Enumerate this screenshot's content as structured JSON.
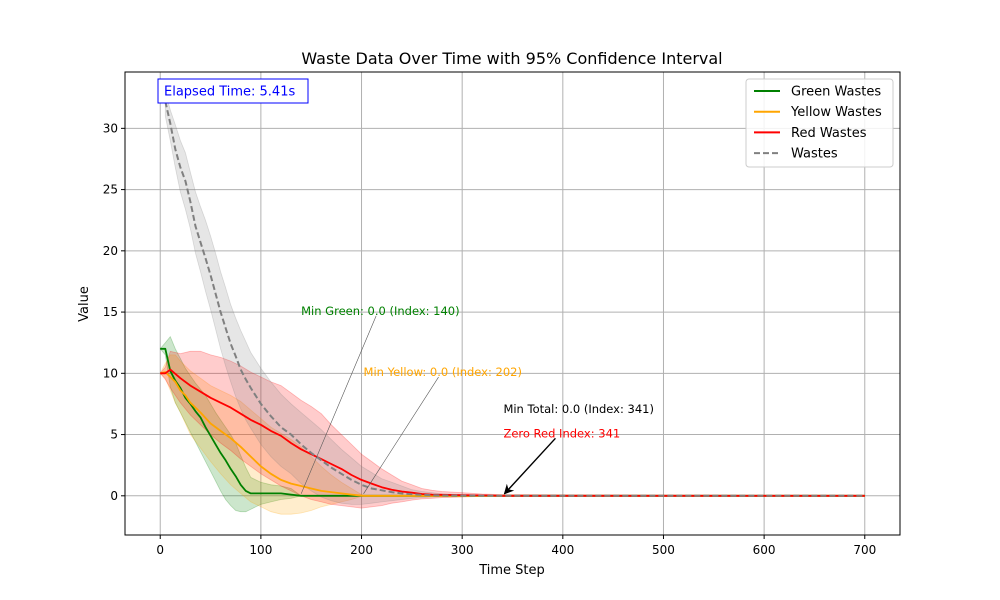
{
  "chart_data": {
    "type": "line",
    "title": "Waste Data Over Time with 95% Confidence Interval",
    "xlabel": "Time Step",
    "ylabel": "Value",
    "xlim": [
      -35,
      735
    ],
    "ylim": [
      -3.2,
      34.6
    ],
    "x_ticks": [
      0,
      100,
      200,
      300,
      400,
      500,
      600,
      700
    ],
    "y_ticks": [
      0,
      5,
      10,
      15,
      20,
      25,
      30
    ],
    "grid": true,
    "legend_position": "top-right",
    "series": [
      {
        "name": "Green Wastes",
        "color": "#008000",
        "dash": false,
        "x": [
          0,
          5,
          10,
          15,
          20,
          25,
          30,
          35,
          40,
          45,
          50,
          55,
          60,
          65,
          70,
          75,
          80,
          85,
          90,
          95,
          100,
          110,
          120,
          130,
          140,
          700
        ],
        "y": [
          12,
          12,
          10.2,
          9.4,
          8.8,
          8.0,
          7.5,
          6.9,
          6.4,
          5.6,
          4.9,
          4.2,
          3.5,
          2.9,
          2.2,
          1.6,
          0.9,
          0.4,
          0.2,
          0.2,
          0.2,
          0.2,
          0.2,
          0.1,
          0.0,
          0.0
        ],
        "lo": [
          12,
          11.5,
          8.9,
          7.6,
          6.8,
          6.0,
          5.2,
          4.4,
          3.6,
          2.8,
          2.0,
          1.2,
          0.4,
          -0.3,
          -0.8,
          -1.2,
          -1.3,
          -1.3,
          -1.1,
          -0.9,
          -0.7,
          -0.5,
          -0.3,
          -0.2,
          0.0,
          0.0
        ],
        "hi": [
          12,
          12.5,
          13.0,
          12.0,
          11.2,
          10.4,
          9.8,
          9.2,
          8.7,
          8.2,
          7.5,
          6.8,
          6.2,
          5.6,
          5.0,
          4.3,
          3.3,
          2.3,
          1.5,
          1.3,
          1.1,
          0.9,
          0.8,
          0.6,
          0.0,
          0.0
        ]
      },
      {
        "name": "Yellow Wastes",
        "color": "#FFA500",
        "dash": false,
        "x": [
          0,
          5,
          10,
          15,
          20,
          25,
          30,
          40,
          50,
          60,
          70,
          80,
          90,
          100,
          110,
          120,
          130,
          140,
          150,
          160,
          170,
          180,
          190,
          202,
          700
        ],
        "y": [
          10,
          10.1,
          9.7,
          9.3,
          8.6,
          8.2,
          7.6,
          6.8,
          5.9,
          5.3,
          4.7,
          4.0,
          3.2,
          2.4,
          1.8,
          1.3,
          1.0,
          0.8,
          0.6,
          0.4,
          0.3,
          0.2,
          0.1,
          0.0,
          0.0
        ],
        "lo": [
          10,
          9.6,
          8.6,
          7.6,
          6.8,
          5.9,
          5.0,
          3.9,
          2.8,
          1.8,
          0.9,
          0.2,
          -0.5,
          -0.9,
          -1.3,
          -1.5,
          -1.5,
          -1.4,
          -1.2,
          -0.9,
          -0.7,
          -0.5,
          -0.3,
          0.0,
          0.0
        ],
        "hi": [
          10,
          10.8,
          11.5,
          11.5,
          11.0,
          10.6,
          10.2,
          9.6,
          9.0,
          8.6,
          8.2,
          7.7,
          7.0,
          6.3,
          5.6,
          5.1,
          4.6,
          4.0,
          3.2,
          2.4,
          1.7,
          1.1,
          0.6,
          0.0,
          0.0
        ]
      },
      {
        "name": "Red Wastes",
        "color": "#FF0000",
        "dash": false,
        "x": [
          0,
          5,
          10,
          20,
          30,
          40,
          50,
          60,
          70,
          80,
          90,
          100,
          110,
          120,
          130,
          140,
          150,
          160,
          170,
          180,
          190,
          200,
          210,
          220,
          230,
          240,
          250,
          260,
          270,
          280,
          300,
          320,
          341,
          700
        ],
        "y": [
          10,
          10.0,
          10.3,
          9.6,
          9.0,
          8.5,
          8.0,
          7.6,
          7.2,
          6.7,
          6.2,
          5.8,
          5.3,
          4.9,
          4.3,
          3.8,
          3.4,
          3.0,
          2.6,
          2.2,
          1.7,
          1.3,
          1.0,
          0.7,
          0.5,
          0.35,
          0.25,
          0.15,
          0.1,
          0.08,
          0.05,
          0.03,
          0.0,
          0.0
        ],
        "lo": [
          10,
          9.5,
          8.8,
          7.6,
          6.6,
          5.8,
          5.0,
          4.3,
          3.7,
          3.0,
          2.4,
          1.8,
          1.3,
          0.8,
          0.4,
          0.0,
          -0.3,
          -0.5,
          -0.7,
          -0.8,
          -0.9,
          -1.0,
          -0.9,
          -0.8,
          -0.6,
          -0.5,
          -0.35,
          -0.25,
          -0.2,
          -0.15,
          -0.1,
          -0.05,
          -0.02,
          0.0
        ],
        "hi": [
          10,
          10.5,
          11.8,
          11.6,
          11.8,
          11.8,
          11.5,
          11.3,
          11.0,
          10.6,
          10.1,
          9.7,
          9.3,
          9.0,
          8.4,
          7.8,
          7.3,
          6.7,
          5.8,
          5.0,
          4.2,
          3.4,
          2.8,
          2.2,
          1.7,
          1.2,
          0.9,
          0.6,
          0.45,
          0.35,
          0.25,
          0.15,
          0.1,
          0.0
        ]
      },
      {
        "name": "Wastes",
        "color": "#808080",
        "dash": true,
        "x": [
          5,
          10,
          15,
          20,
          25,
          30,
          35,
          40,
          45,
          50,
          55,
          60,
          65,
          70,
          75,
          80,
          85,
          90,
          100,
          110,
          120,
          130,
          140,
          150,
          160,
          170,
          180,
          190,
          200,
          210,
          220,
          230,
          240,
          250,
          260,
          270,
          280,
          300,
          320,
          341,
          700
        ],
        "y": [
          32.2,
          30.4,
          28.3,
          26.8,
          25.7,
          24.0,
          22.0,
          20.7,
          19.4,
          18.0,
          16.5,
          15.0,
          13.7,
          12.4,
          11.4,
          10.3,
          9.5,
          8.8,
          7.5,
          6.5,
          5.6,
          5.0,
          4.2,
          3.5,
          2.9,
          2.3,
          1.8,
          1.3,
          0.9,
          0.6,
          0.45,
          0.3,
          0.2,
          0.12,
          0.08,
          0.05,
          0.03,
          0.02,
          0.01,
          0.0,
          0.0
        ],
        "lo": [
          31.0,
          29.0,
          26.8,
          24.8,
          23.4,
          21.8,
          19.8,
          18.3,
          16.7,
          15.2,
          13.6,
          12.0,
          10.6,
          9.3,
          8.1,
          7.1,
          6.2,
          5.5,
          4.2,
          3.2,
          2.4,
          1.8,
          1.0,
          0.4,
          -0.1,
          -0.4,
          -0.6,
          -0.7,
          -0.7,
          -0.6,
          -0.5,
          -0.4,
          -0.3,
          -0.2,
          -0.15,
          -0.1,
          -0.05,
          -0.03,
          -0.02,
          0.0,
          0.0
        ],
        "hi": [
          33.0,
          31.5,
          30.3,
          29.0,
          28.0,
          26.4,
          24.8,
          23.6,
          22.5,
          21.2,
          19.8,
          18.3,
          17.0,
          15.6,
          14.5,
          13.5,
          12.6,
          11.7,
          10.4,
          9.3,
          8.3,
          7.5,
          6.8,
          6.1,
          5.4,
          4.6,
          3.8,
          3.1,
          2.4,
          1.9,
          1.4,
          1.1,
          0.8,
          0.5,
          0.35,
          0.25,
          0.15,
          0.1,
          0.05,
          0.0,
          0.0
        ]
      }
    ],
    "annotations": [
      {
        "text": "Min Green: 0.0 (Index: 140)",
        "color": "#008000",
        "text_x": 140,
        "text_y": 15.1,
        "point_x": 140,
        "point_y": 0.0,
        "arrow": "thin"
      },
      {
        "text": "Min Yellow: 0.0 (Index: 202)",
        "color": "#FFA500",
        "text_x": 202,
        "text_y": 10.1,
        "point_x": 202,
        "point_y": 0.0,
        "arrow": "thin"
      },
      {
        "text": "Min Total: 0.0 (Index: 341)",
        "color": "#000000",
        "text_x": 341,
        "text_y": 7.1,
        "point_x": 341,
        "point_y": 0.0,
        "arrow": "none"
      },
      {
        "text": "Zero Red Index: 341",
        "color": "#FF0000",
        "text_x": 341,
        "text_y": 5.1,
        "point_x": 341,
        "point_y": 0.0,
        "arrow": "bold"
      }
    ],
    "info_box": {
      "text": "Elapsed Time: 5.41s",
      "color": "#0000FF"
    }
  }
}
